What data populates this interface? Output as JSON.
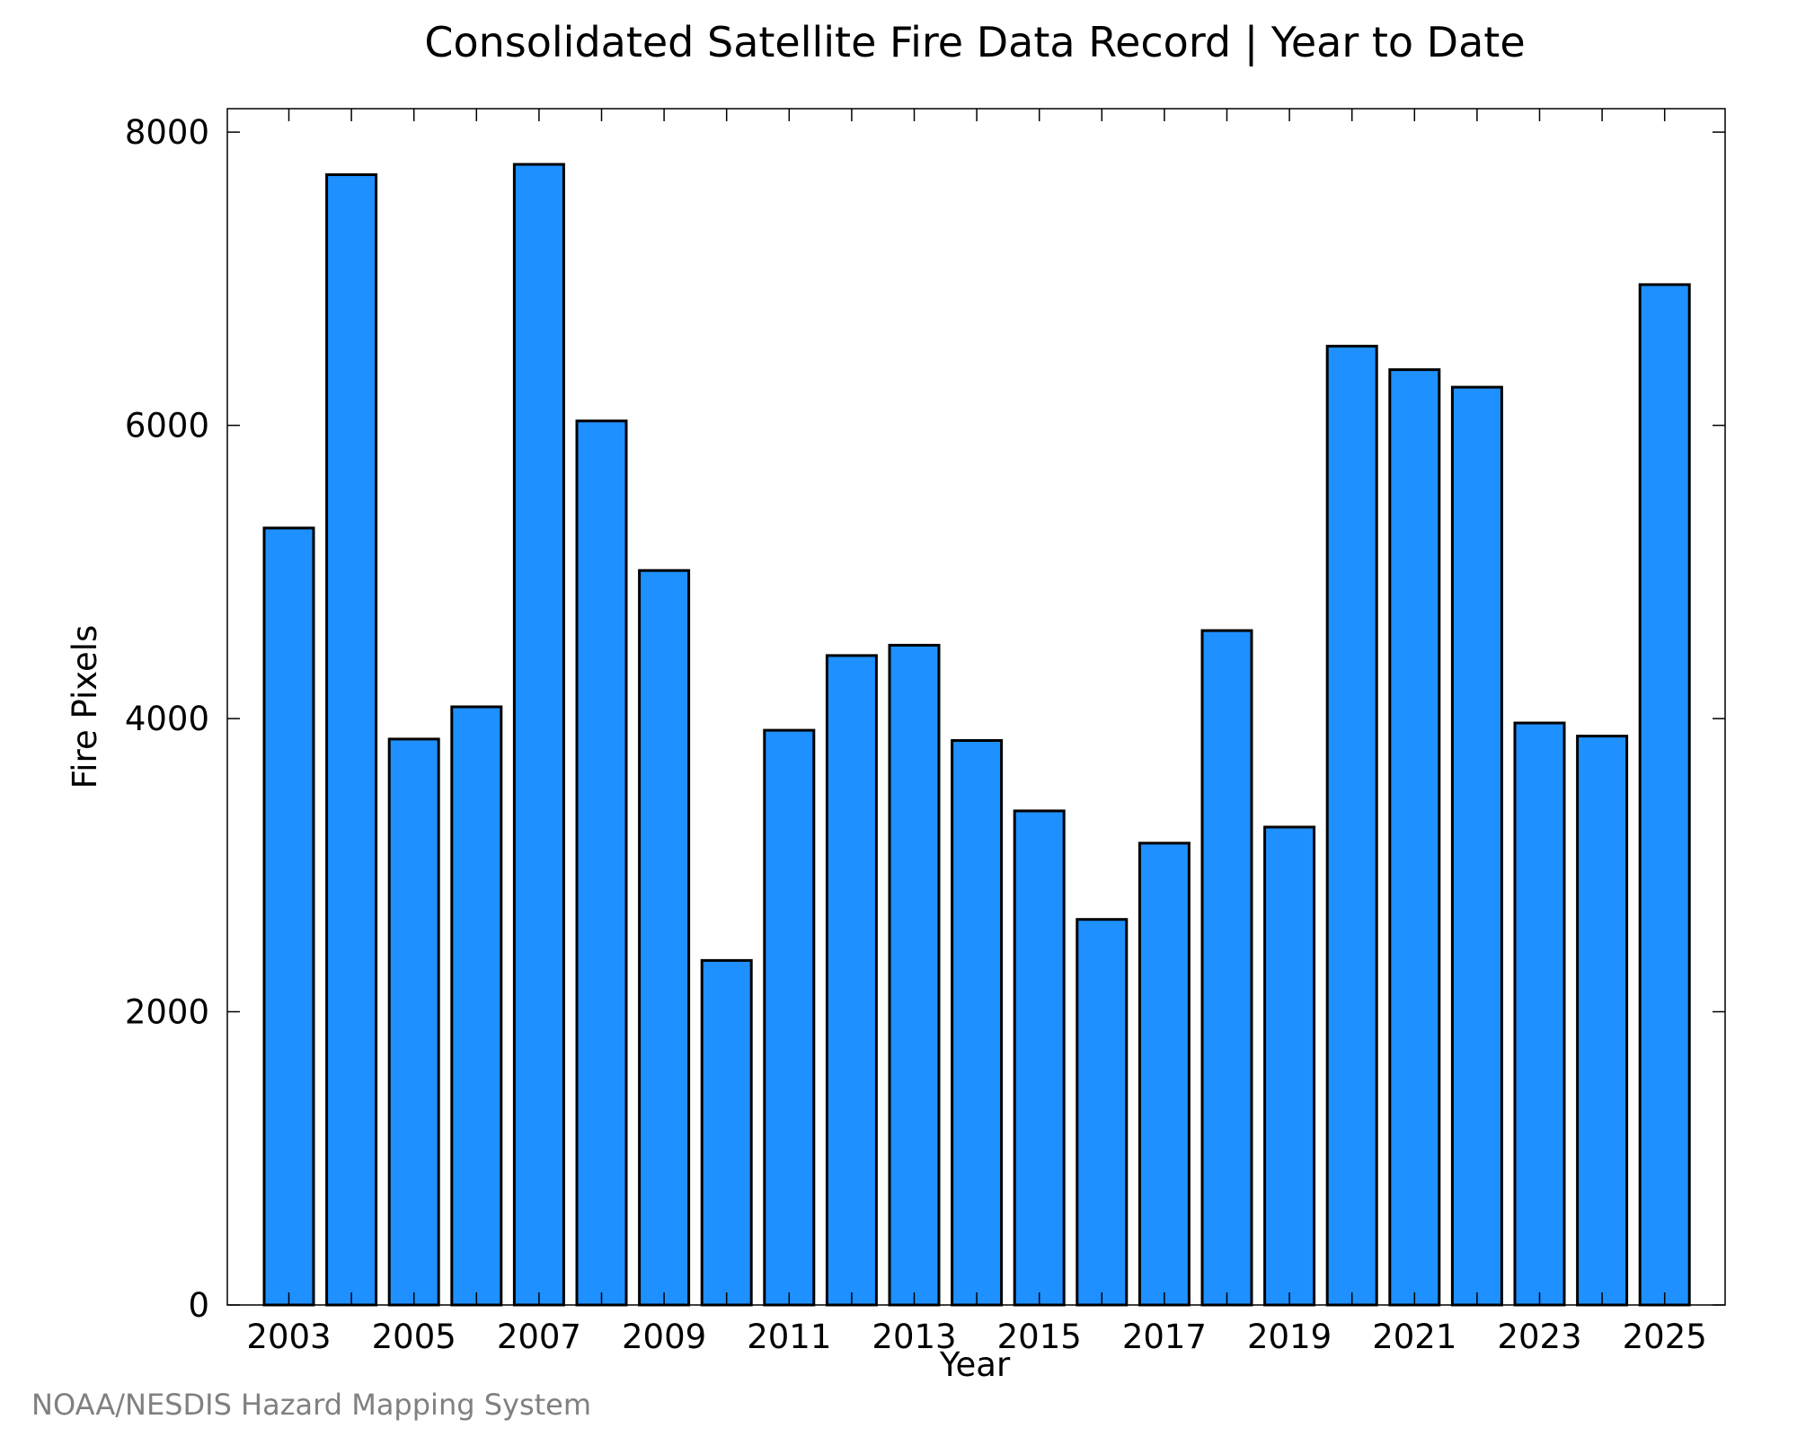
{
  "chart_data": {
    "type": "bar",
    "title": "Consolidated Satellite Fire Data Record | Year to Date",
    "xlabel": "Year",
    "ylabel": "Fire Pixels",
    "categories": [
      "2003",
      "2004",
      "2005",
      "2006",
      "2007",
      "2008",
      "2009",
      "2010",
      "2011",
      "2012",
      "2013",
      "2014",
      "2015",
      "2016",
      "2017",
      "2018",
      "2019",
      "2020",
      "2021",
      "2022",
      "2023",
      "2024",
      "2025"
    ],
    "x_tick_labels": [
      "2003",
      "2005",
      "2007",
      "2009",
      "2011",
      "2013",
      "2015",
      "2017",
      "2019",
      "2021",
      "2023",
      "2025"
    ],
    "values": [
      5300,
      7710,
      3860,
      4080,
      7780,
      6030,
      5010,
      2350,
      3920,
      4430,
      4500,
      3850,
      3370,
      2630,
      3150,
      4600,
      3260,
      6540,
      6380,
      6260,
      3970,
      3880,
      6960
    ],
    "ylim": [
      0,
      8160
    ],
    "y_ticks": [
      0,
      2000,
      4000,
      6000,
      8000
    ],
    "y_tick_labels": [
      "0",
      "2000",
      "4000",
      "6000",
      "8000"
    ],
    "grid": false,
    "bar_color": "#1e90ff",
    "credit": "NOAA/NESDIS Hazard Mapping System"
  }
}
